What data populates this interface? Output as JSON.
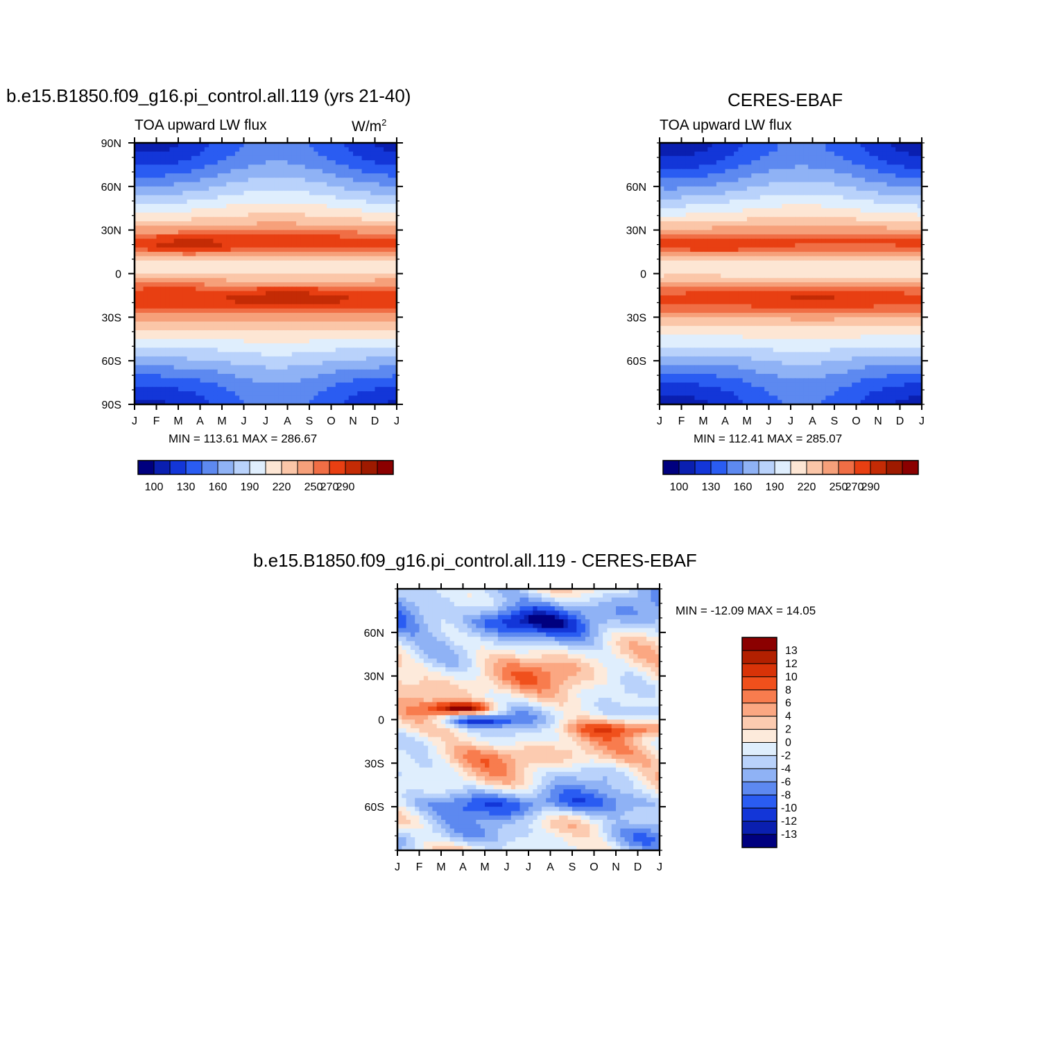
{
  "chart_data": [
    {
      "type": "heatmap",
      "panel": "model",
      "title": "b.e15.B1850.f09_g16.pi_control.all.119 (yrs 21-40)",
      "left_string": "TOA upward LW flux",
      "units": "W/m",
      "units_sup": "2",
      "minmax": "MIN =  113.61  MAX =  286.67",
      "x_ticks": [
        "J",
        "F",
        "M",
        "A",
        "M",
        "J",
        "J",
        "A",
        "S",
        "O",
        "N",
        "D",
        "J"
      ],
      "y_ticks": [
        "90N",
        "60N",
        "30N",
        "0",
        "30S",
        "60S",
        "90S"
      ],
      "ylim": [
        -90,
        90
      ],
      "colorbar": {
        "levels": [
          100,
          130,
          160,
          190,
          220,
          250,
          270,
          290
        ],
        "colors": [
          "#00007f",
          "#0a1fb0",
          "#1336d8",
          "#2a5cf2",
          "#5d89f0",
          "#8fb2f5",
          "#b9d2fb",
          "#dfeefd",
          "#fde6d4",
          "#fbc6a8",
          "#f6a07a",
          "#f06e45",
          "#e83f12",
          "#c42b05",
          "#9e1a00",
          "#8b0000"
        ]
      }
    },
    {
      "type": "heatmap",
      "panel": "obs",
      "title": "CERES-EBAF",
      "left_string": "TOA upward LW flux",
      "minmax": "MIN =  112.41  MAX =  285.07",
      "x_ticks": [
        "J",
        "F",
        "M",
        "A",
        "M",
        "J",
        "J",
        "A",
        "S",
        "O",
        "N",
        "D",
        "J"
      ],
      "y_ticks": [
        "60N",
        "30N",
        "0",
        "30S",
        "60S"
      ],
      "ylim": [
        -90,
        90
      ],
      "colorbar": {
        "levels": [
          100,
          130,
          160,
          190,
          220,
          250,
          270,
          290
        ]
      }
    },
    {
      "type": "heatmap",
      "panel": "difference",
      "title": "b.e15.B1850.f09_g16.pi_control.all.119 - CERES-EBAF",
      "minmax": "MIN = -12.09  MAX =   14.05",
      "x_ticks": [
        "J",
        "F",
        "M",
        "A",
        "M",
        "J",
        "J",
        "A",
        "S",
        "O",
        "N",
        "D",
        "J"
      ],
      "y_ticks": [
        "60N",
        "30N",
        "0",
        "30S",
        "60S"
      ],
      "ylim": [
        -90,
        90
      ],
      "colorbar": {
        "levels": [
          "13",
          "12",
          "10",
          "8",
          "6",
          "4",
          "2",
          "0",
          "-2",
          "-4",
          "-6",
          "-8",
          "-10",
          "-12",
          "-13"
        ],
        "colors": [
          "#8b0000",
          "#b22000",
          "#d83308",
          "#f0501c",
          "#f87c4e",
          "#fba782",
          "#fccbb0",
          "#fdeadb",
          "#dfeefd",
          "#b9d2fb",
          "#8fb2f5",
          "#5d89f0",
          "#2a5cf2",
          "#1336d8",
          "#0a1fb0",
          "#00007f"
        ]
      }
    }
  ]
}
